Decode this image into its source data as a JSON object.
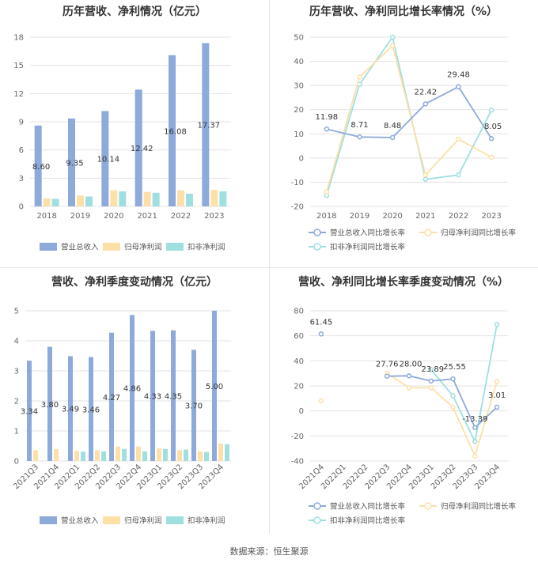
{
  "source_text": "数据来源：恒生聚源",
  "chart_data": [
    {
      "id": "c1",
      "type": "bar",
      "title": "历年营收、净利情况（亿元）",
      "categories": [
        "2018",
        "2019",
        "2020",
        "2021",
        "2022",
        "2023"
      ],
      "ylim": [
        0,
        18
      ],
      "yticks": [
        "0",
        "3",
        "6",
        "9",
        "12",
        "15",
        "18"
      ],
      "series": [
        {
          "name": "营业总收入",
          "color": "#8eaadb",
          "values": [
            8.6,
            9.35,
            10.14,
            12.42,
            16.08,
            17.37
          ],
          "labels": [
            "8.60",
            "9.35",
            "10.14",
            "12.42",
            "16.08",
            "17.37"
          ]
        },
        {
          "name": "归母净利润",
          "color": "#fde0a8",
          "values": [
            0.85,
            1.15,
            1.7,
            1.55,
            1.7,
            1.75
          ]
        },
        {
          "name": "扣非净利润",
          "color": "#9fdfe0",
          "values": [
            0.8,
            1.05,
            1.6,
            1.45,
            1.35,
            1.6
          ]
        }
      ],
      "legend": "bottom",
      "grid": true
    },
    {
      "id": "c2",
      "type": "line",
      "title": "历年营收、净利同比增长率情况（%）",
      "categories": [
        "2018",
        "2019",
        "2020",
        "2021",
        "2022",
        "2023"
      ],
      "ylim": [
        -20,
        50
      ],
      "yticks": [
        "-20",
        "-10",
        "0",
        "10",
        "20",
        "30",
        "40",
        "50"
      ],
      "series": [
        {
          "name": "营业总收入同比增长率",
          "color": "#8eaadb",
          "values": [
            11.98,
            8.71,
            8.48,
            22.42,
            29.48,
            8.05
          ],
          "labels": [
            "11.98",
            "8.71",
            "8.48",
            "22.42",
            "29.48",
            "8.05"
          ]
        },
        {
          "name": "归母净利润同比增长率",
          "color": "#fde0a8",
          "values": [
            -14.0,
            33.5,
            46.5,
            -7.0,
            7.8,
            0.3
          ]
        },
        {
          "name": "扣非净利润同比增长率",
          "color": "#9fdfe0",
          "values": [
            -15.5,
            30.5,
            50.0,
            -8.8,
            -7.0,
            19.8
          ]
        }
      ],
      "legend": "bottom",
      "grid": true
    },
    {
      "id": "c3",
      "type": "bar",
      "title": "营收、净利季度变动情况（亿元）",
      "categories": [
        "2021Q3",
        "2021Q4",
        "2022Q1",
        "2022Q2",
        "2022Q3",
        "2022Q4",
        "2023Q1",
        "2023Q2",
        "2023Q3",
        "2023Q4"
      ],
      "ylim": [
        0,
        5
      ],
      "yticks": [
        "0",
        "1",
        "2",
        "3",
        "4",
        "5"
      ],
      "series": [
        {
          "name": "营业总收入",
          "color": "#8eaadb",
          "values": [
            3.34,
            3.8,
            3.49,
            3.46,
            4.27,
            4.86,
            4.33,
            4.35,
            3.7,
            5.0
          ],
          "labels": [
            "3.34",
            "3.80",
            "3.49",
            "3.46",
            "4.27",
            "4.86",
            "4.33",
            "4.35",
            "3.70",
            "5.00"
          ]
        },
        {
          "name": "归母净利润",
          "color": "#fde0a8",
          "values": [
            0.36,
            0.4,
            0.34,
            0.36,
            0.48,
            0.48,
            0.42,
            0.36,
            0.32,
            0.58
          ]
        },
        {
          "name": "扣非净利润",
          "color": "#9fdfe0",
          "values": [
            0.0,
            0.0,
            0.31,
            0.32,
            0.4,
            0.32,
            0.4,
            0.38,
            0.3,
            0.56
          ]
        }
      ],
      "legend": "bottom",
      "grid": true
    },
    {
      "id": "c4",
      "type": "line",
      "title": "营收、净利同比增长率季度变动情况（%）",
      "categories": [
        "2021Q4",
        "2022Q1",
        "2022Q2",
        "2022Q3",
        "2022Q4",
        "2023Q1",
        "2023Q2",
        "2023Q3",
        "2023Q4"
      ],
      "ylim": [
        -40,
        80
      ],
      "yticks": [
        "-40",
        "-20",
        "0",
        "20",
        "40",
        "60",
        "80"
      ],
      "series": [
        {
          "name": "营业总收入同比增长率",
          "color": "#8eaadb",
          "values": [
            61.45,
            null,
            null,
            27.76,
            28.0,
            23.89,
            25.55,
            -13.39,
            3.01
          ],
          "labels": [
            "61.45",
            "",
            "",
            "27.76",
            "28.00",
            "23.89",
            "25.55",
            "-13.39",
            "3.01"
          ]
        },
        {
          "name": "归母净利润同比增长率",
          "color": "#fde0a8",
          "values": [
            8.0,
            null,
            null,
            30.0,
            18.5,
            18.5,
            3.0,
            -36.0,
            23.5
          ]
        },
        {
          "name": "扣非净利润同比增长率",
          "color": "#9fdfe0",
          "values": [
            null,
            null,
            null,
            null,
            null,
            33.0,
            12.0,
            -24.5,
            69.0
          ]
        }
      ],
      "legend": "bottom",
      "grid": true
    }
  ]
}
